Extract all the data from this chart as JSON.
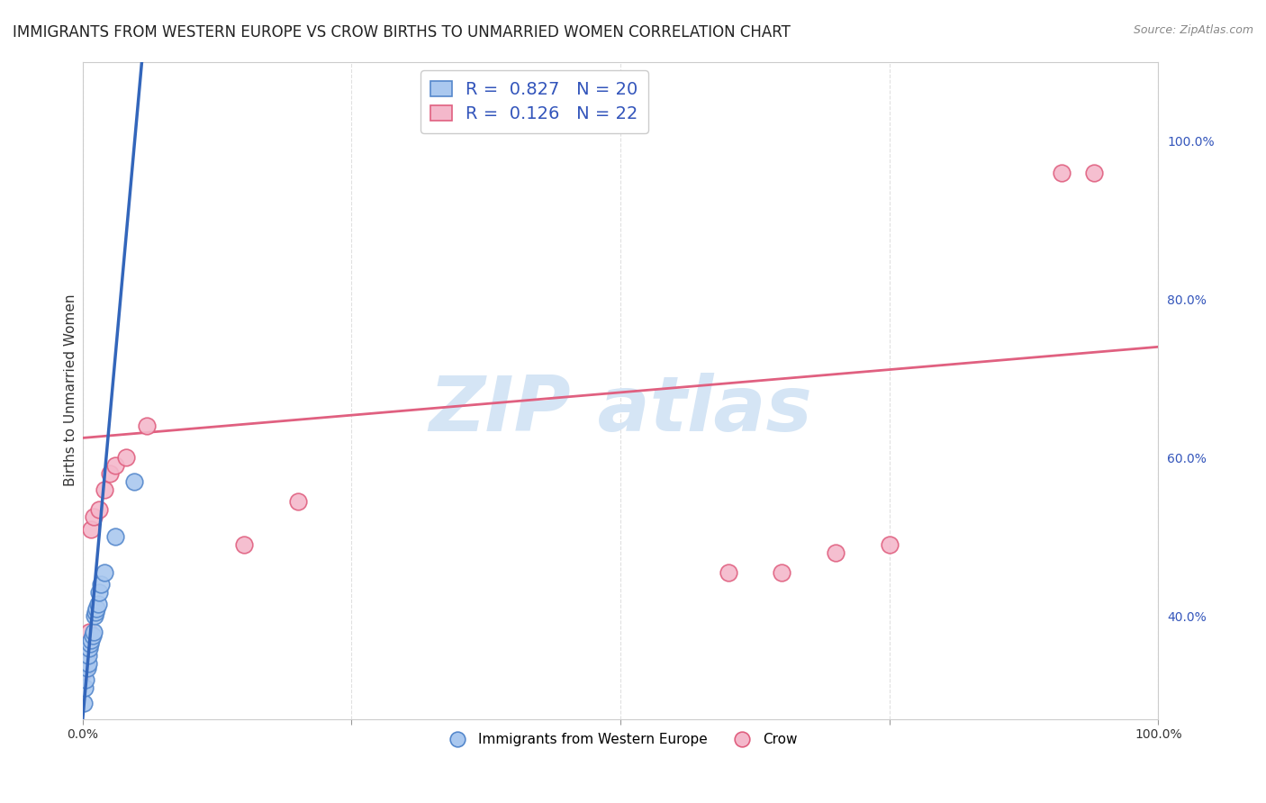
{
  "title": "IMMIGRANTS FROM WESTERN EUROPE VS CROW BIRTHS TO UNMARRIED WOMEN CORRELATION CHART",
  "source": "Source: ZipAtlas.com",
  "ylabel": "Births to Unmarried Women",
  "xlim": [
    0.0,
    1.0
  ],
  "ylim": [
    0.27,
    1.1
  ],
  "xtick_positions": [
    0.0,
    0.25,
    0.5,
    0.75,
    1.0
  ],
  "xticklabels": [
    "0.0%",
    "",
    "",
    "",
    "100.0%"
  ],
  "ytick_positions": [
    0.4,
    0.6,
    0.8,
    1.0
  ],
  "yticklabels": [
    "40.0%",
    "60.0%",
    "80.0%",
    "100.0%"
  ],
  "blue_label": "Immigrants from Western Europe",
  "pink_label": "Crow",
  "blue_R": "0.827",
  "blue_N": "20",
  "pink_R": "0.126",
  "pink_N": "22",
  "blue_fill_color": "#aac8ef",
  "pink_fill_color": "#f4b8cb",
  "blue_edge_color": "#5588cc",
  "pink_edge_color": "#e06080",
  "blue_line_color": "#3366bb",
  "pink_line_color": "#e06080",
  "blue_scatter_x": [
    0.001,
    0.002,
    0.003,
    0.004,
    0.005,
    0.005,
    0.006,
    0.007,
    0.008,
    0.009,
    0.01,
    0.011,
    0.012,
    0.013,
    0.014,
    0.015,
    0.017,
    0.02,
    0.03,
    0.048
  ],
  "blue_scatter_y": [
    0.29,
    0.31,
    0.32,
    0.335,
    0.34,
    0.35,
    0.36,
    0.365,
    0.37,
    0.375,
    0.38,
    0.4,
    0.405,
    0.41,
    0.415,
    0.43,
    0.44,
    0.455,
    0.5,
    0.57
  ],
  "pink_scatter_x": [
    0.001,
    0.002,
    0.003,
    0.004,
    0.005,
    0.006,
    0.008,
    0.01,
    0.015,
    0.02,
    0.025,
    0.03,
    0.04,
    0.06,
    0.15,
    0.2,
    0.6,
    0.65,
    0.7,
    0.75,
    0.91,
    0.94
  ],
  "pink_scatter_y": [
    0.33,
    0.34,
    0.35,
    0.355,
    0.36,
    0.38,
    0.51,
    0.525,
    0.535,
    0.56,
    0.58,
    0.59,
    0.6,
    0.64,
    0.49,
    0.545,
    0.455,
    0.455,
    0.48,
    0.49,
    0.96,
    0.96
  ],
  "blue_line_x0": 0.0,
  "blue_line_x1": 0.055,
  "blue_line_y0": 0.27,
  "blue_line_y1": 1.1,
  "pink_line_x0": 0.0,
  "pink_line_x1": 1.0,
  "pink_line_y0": 0.625,
  "pink_line_y1": 0.74,
  "grid_color": "#e0e0e0",
  "grid_style": "--",
  "background_color": "#ffffff",
  "title_fontsize": 12,
  "axis_label_fontsize": 11,
  "tick_fontsize": 10,
  "legend_fontsize": 14,
  "watermark_text": "ZIP atlas",
  "watermark_color": "#d5e5f5",
  "legend_text_color": "#3355bb"
}
